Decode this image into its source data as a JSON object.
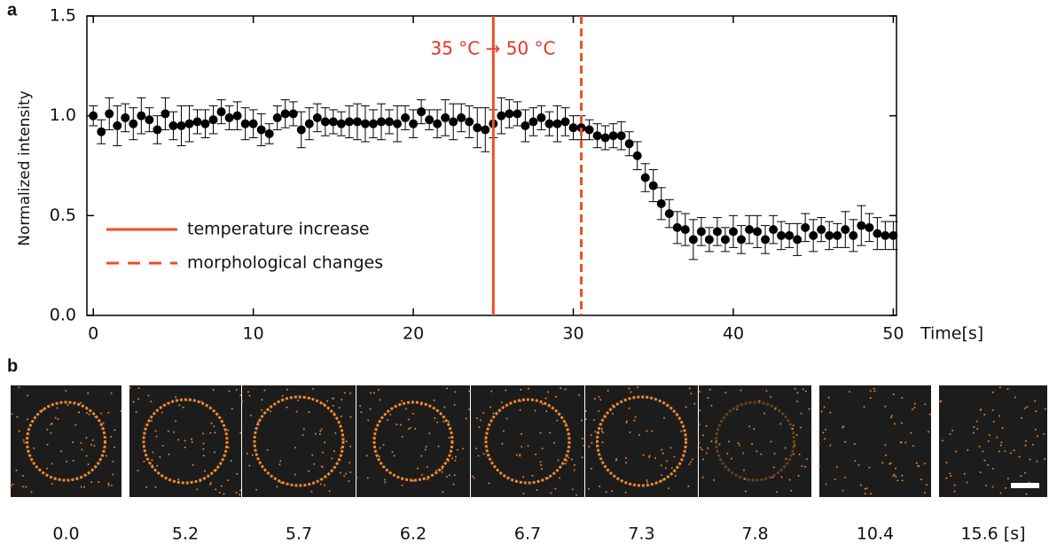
{
  "chart_data": {
    "type": "scatter",
    "panel_label": "a",
    "xlabel": "Time[s]",
    "ylabel": "Normalized intensity",
    "annotation": "35 °C → 50 °C",
    "xlim": [
      -0.4,
      50.2
    ],
    "ylim": [
      0,
      1.5
    ],
    "xticks": [
      0,
      10,
      20,
      30,
      40,
      50
    ],
    "yticks": [
      {
        "value": 0,
        "label": "0.0"
      },
      {
        "value": 0.5,
        "label": "0.5"
      },
      {
        "value": 1,
        "label": "1.0"
      },
      {
        "value": 1.5,
        "label": "1.5"
      }
    ],
    "color": "#000000",
    "x": [
      0,
      0.5,
      1,
      1.5,
      2,
      2.5,
      3,
      3.5,
      4,
      4.5,
      5,
      5.5,
      6,
      6.5,
      7,
      7.5,
      8,
      8.5,
      9,
      9.5,
      10,
      10.5,
      11,
      11.5,
      12,
      12.5,
      13,
      13.5,
      14,
      14.5,
      15,
      15.5,
      16,
      16.5,
      17,
      17.5,
      18,
      18.5,
      19,
      19.5,
      20,
      20.5,
      21,
      21.5,
      22,
      22.5,
      23,
      23.5,
      24,
      24.5,
      25,
      25.5,
      26,
      26.5,
      27,
      27.5,
      28,
      28.5,
      29,
      29.5,
      30,
      30.5,
      31,
      31.5,
      32,
      32.5,
      33,
      33.5,
      34,
      34.5,
      35,
      35.5,
      36,
      36.5,
      37,
      37.5,
      38,
      38.5,
      39,
      39.5,
      40,
      40.5,
      41,
      41.5,
      42,
      42.5,
      43,
      43.5,
      44,
      44.5,
      45,
      45.5,
      46,
      46.5,
      47,
      47.5,
      48,
      48.5,
      49,
      49.5,
      50
    ],
    "values": [
      1.0,
      0.92,
      1.01,
      0.95,
      0.99,
      0.96,
      1.0,
      0.98,
      0.93,
      1.01,
      0.95,
      0.95,
      0.96,
      0.97,
      0.96,
      0.98,
      1.02,
      0.99,
      1.0,
      0.96,
      0.96,
      0.93,
      0.91,
      0.99,
      1.01,
      1.01,
      0.93,
      0.96,
      0.99,
      0.97,
      0.97,
      0.96,
      0.97,
      0.97,
      0.96,
      0.96,
      0.97,
      0.97,
      0.96,
      0.99,
      0.96,
      1.02,
      0.98,
      0.96,
      0.99,
      0.97,
      0.99,
      0.97,
      0.94,
      0.93,
      0.96,
      1.0,
      1.01,
      1.01,
      0.95,
      0.97,
      0.99,
      0.96,
      0.96,
      0.97,
      0.94,
      0.94,
      0.93,
      0.9,
      0.89,
      0.9,
      0.9,
      0.86,
      0.8,
      0.69,
      0.65,
      0.56,
      0.51,
      0.44,
      0.43,
      0.38,
      0.42,
      0.38,
      0.42,
      0.38,
      0.42,
      0.38,
      0.43,
      0.42,
      0.38,
      0.43,
      0.4,
      0.4,
      0.38,
      0.44,
      0.4,
      0.43,
      0.4,
      0.4,
      0.43,
      0.4,
      0.45,
      0.44,
      0.41,
      0.4,
      0.4
    ],
    "errors": [
      0.05,
      0.06,
      0.08,
      0.1,
      0.07,
      0.08,
      0.09,
      0.06,
      0.07,
      0.08,
      0.07,
      0.1,
      0.09,
      0.06,
      0.07,
      0.07,
      0.06,
      0.06,
      0.07,
      0.08,
      0.07,
      0.08,
      0.05,
      0.06,
      0.07,
      0.06,
      0.09,
      0.08,
      0.07,
      0.07,
      0.06,
      0.06,
      0.08,
      0.09,
      0.09,
      0.07,
      0.09,
      0.06,
      0.09,
      0.06,
      0.07,
      0.06,
      0.05,
      0.07,
      0.09,
      0.09,
      0.07,
      0.08,
      0.1,
      0.11,
      0.07,
      0.09,
      0.07,
      0.06,
      0.08,
      0.07,
      0.06,
      0.06,
      0.09,
      0.07,
      0.06,
      0.06,
      0.05,
      0.06,
      0.06,
      0.06,
      0.07,
      0.06,
      0.07,
      0.07,
      0.08,
      0.08,
      0.07,
      0.08,
      0.08,
      0.1,
      0.07,
      0.06,
      0.07,
      0.06,
      0.08,
      0.07,
      0.07,
      0.08,
      0.07,
      0.07,
      0.07,
      0.06,
      0.08,
      0.07,
      0.08,
      0.06,
      0.07,
      0.06,
      0.09,
      0.08,
      0.1,
      0.07,
      0.08,
      0.07,
      0.07
    ],
    "markers": [
      {
        "x": 25,
        "style": "solid",
        "label": "temperature increase"
      },
      {
        "x": 30.5,
        "style": "dashed",
        "label": "morphological changes"
      }
    ],
    "marker_color": "#f04e23",
    "annotation_color": "#e8332a"
  },
  "panel_b": {
    "label": "b",
    "frames": [
      "0.0",
      "5.2",
      "5.7",
      "6.2",
      "6.7",
      "7.3",
      "7.8",
      "10.4",
      "15.6 [s]"
    ]
  }
}
